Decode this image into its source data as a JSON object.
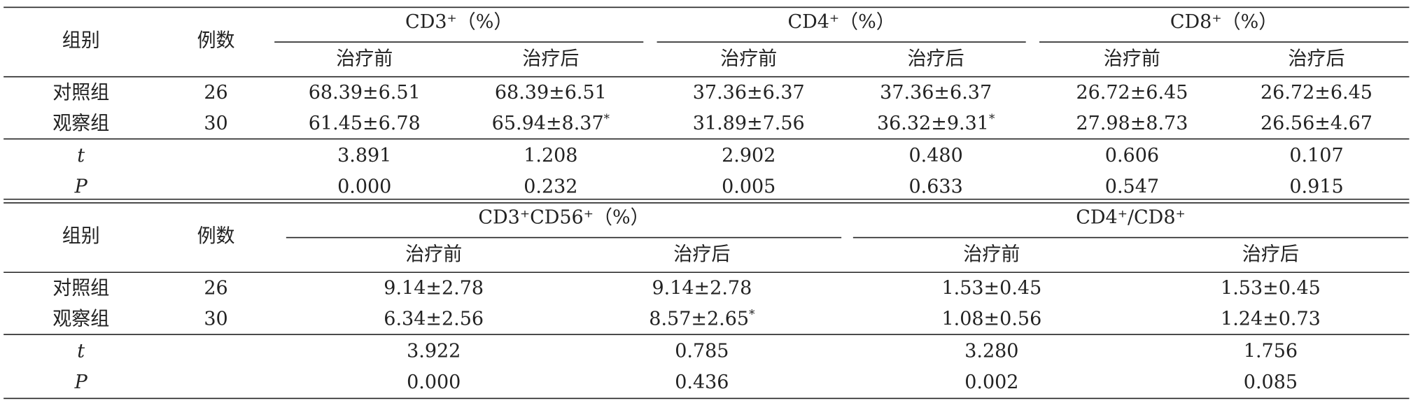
{
  "tables": [
    {
      "header": {
        "group": "组别",
        "n": "例数",
        "spans": [
          "CD3⁺（%）",
          "CD4⁺（%）",
          "CD8⁺（%）"
        ],
        "sub": [
          "治疗前",
          "治疗后",
          "治疗前",
          "治疗后",
          "治疗前",
          "治疗后"
        ]
      },
      "rows": [
        {
          "group": "对照组",
          "n": "26",
          "values": [
            "68.39±6.51",
            "68.39±6.51",
            "37.36±6.37",
            "37.36±6.37",
            "26.72±6.45",
            "26.72±6.45"
          ]
        },
        {
          "group": "观察组",
          "n": "30",
          "values": [
            "61.45±6.78",
            "65.94±8.37*",
            "31.89±7.56",
            "36.32±9.31*",
            "27.98±8.73",
            "26.56±4.67"
          ]
        },
        {
          "group": "t",
          "values": [
            "3.891",
            "1.208",
            "2.902",
            "0.480",
            "0.606",
            "0.107"
          ]
        },
        {
          "group": "P",
          "values": [
            "0.000",
            "0.232",
            "0.005",
            "0.633",
            "0.547",
            "0.915"
          ]
        }
      ]
    },
    {
      "header": {
        "group": "组别",
        "n": "例数",
        "spans": [
          "CD3⁺CD56⁺（%）",
          "CD4⁺/CD8⁺"
        ],
        "sub": [
          "治疗前",
          "治疗后",
          "治疗前",
          "治疗后"
        ]
      },
      "rows": [
        {
          "group": "对照组",
          "n": "26",
          "values": [
            "9.14±2.78",
            "9.14±2.78",
            "1.53±0.45",
            "1.53±0.45"
          ]
        },
        {
          "group": "观察组",
          "n": "30",
          "values": [
            "6.34±2.56",
            "8.57±2.65*",
            "1.08±0.56",
            "1.24±0.73"
          ]
        },
        {
          "group": "t",
          "values": [
            "3.922",
            "0.785",
            "3.280",
            "1.756"
          ]
        },
        {
          "group": "P",
          "values": [
            "0.000",
            "0.436",
            "0.002",
            "0.085"
          ]
        }
      ]
    }
  ]
}
